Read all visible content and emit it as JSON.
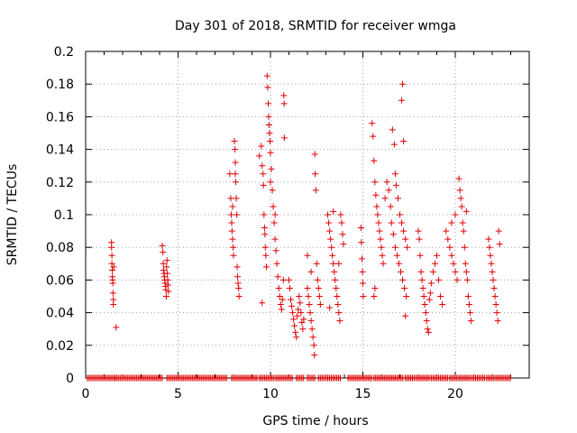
{
  "chart_data": {
    "type": "scatter",
    "title": "Day 301 of 2018, SRMTID for receiver wmga",
    "xlabel": "GPS time / hours",
    "ylabel": "SRMTID / TECUs",
    "xlim": [
      0,
      24
    ],
    "ylim": [
      0,
      0.2
    ],
    "xticks": [
      0,
      5,
      10,
      15,
      20
    ],
    "xtick_labels": [
      "0",
      "5",
      "10",
      "15",
      "20"
    ],
    "yticks": [
      0,
      0.02,
      0.04,
      0.06,
      0.08,
      0.1,
      0.12,
      0.14,
      0.16,
      0.18,
      0.2
    ],
    "ytick_labels": [
      "0",
      "0.02",
      "0.04",
      "0.06",
      "0.08",
      "0.1",
      "0.12",
      "0.14",
      "0.16",
      "0.18",
      "0.2"
    ],
    "grid": true,
    "marker": "+",
    "marker_color": "#e00000",
    "series": [
      {
        "name": "SRMTID",
        "points": [
          [
            1.4,
            0.083
          ],
          [
            1.4,
            0.08
          ],
          [
            1.42,
            0.075
          ],
          [
            1.42,
            0.07
          ],
          [
            1.44,
            0.066
          ],
          [
            1.45,
            0.062
          ],
          [
            1.46,
            0.06
          ],
          [
            1.47,
            0.058
          ],
          [
            1.48,
            0.052
          ],
          [
            1.5,
            0.048
          ],
          [
            1.5,
            0.045
          ],
          [
            1.52,
            0.068
          ],
          [
            1.65,
            0.031
          ],
          [
            4.15,
            0.081
          ],
          [
            4.18,
            0.077
          ],
          [
            4.2,
            0.07
          ],
          [
            4.22,
            0.066
          ],
          [
            4.24,
            0.064
          ],
          [
            4.26,
            0.062
          ],
          [
            4.28,
            0.06
          ],
          [
            4.3,
            0.058
          ],
          [
            4.32,
            0.056
          ],
          [
            4.34,
            0.054
          ],
          [
            4.36,
            0.05
          ],
          [
            4.38,
            0.068
          ],
          [
            4.4,
            0.072
          ],
          [
            4.42,
            0.064
          ],
          [
            4.44,
            0.06
          ],
          [
            4.46,
            0.057
          ],
          [
            4.48,
            0.053
          ],
          [
            7.8,
            0.125
          ],
          [
            7.85,
            0.11
          ],
          [
            7.88,
            0.1
          ],
          [
            7.9,
            0.095
          ],
          [
            7.92,
            0.09
          ],
          [
            7.95,
            0.085
          ],
          [
            7.98,
            0.08
          ],
          [
            8.0,
            0.075
          ],
          [
            8.05,
            0.145
          ],
          [
            8.08,
            0.14
          ],
          [
            8.1,
            0.132
          ],
          [
            8.12,
            0.12
          ],
          [
            8.15,
            0.11
          ],
          [
            8.18,
            0.1
          ],
          [
            8.2,
            0.068
          ],
          [
            8.22,
            0.062
          ],
          [
            8.25,
            0.058
          ],
          [
            8.28,
            0.055
          ],
          [
            8.3,
            0.05
          ],
          [
            8.1,
            0.125
          ],
          [
            7.95,
            0.105
          ],
          [
            9.4,
            0.136
          ],
          [
            9.5,
            0.142
          ],
          [
            9.55,
            0.13
          ],
          [
            9.6,
            0.125
          ],
          [
            9.62,
            0.118
          ],
          [
            9.65,
            0.1
          ],
          [
            9.68,
            0.092
          ],
          [
            9.7,
            0.088
          ],
          [
            9.72,
            0.08
          ],
          [
            9.75,
            0.075
          ],
          [
            9.78,
            0.068
          ],
          [
            9.55,
            0.046
          ],
          [
            9.82,
            0.185
          ],
          [
            9.85,
            0.178
          ],
          [
            9.88,
            0.168
          ],
          [
            9.9,
            0.16
          ],
          [
            9.92,
            0.155
          ],
          [
            9.95,
            0.15
          ],
          [
            9.98,
            0.145
          ],
          [
            10.0,
            0.138
          ],
          [
            10.05,
            0.128
          ],
          [
            10.1,
            0.115
          ],
          [
            10.15,
            0.105
          ],
          [
            10.2,
            0.095
          ],
          [
            10.25,
            0.085
          ],
          [
            10.3,
            0.078
          ],
          [
            10.35,
            0.07
          ],
          [
            10.4,
            0.062
          ],
          [
            10.45,
            0.055
          ],
          [
            10.5,
            0.05
          ],
          [
            10.55,
            0.045
          ],
          [
            10.6,
            0.042
          ],
          [
            10.65,
            0.048
          ],
          [
            10.7,
            0.06
          ],
          [
            10.75,
            0.147
          ],
          [
            10.72,
            0.173
          ],
          [
            10.74,
            0.168
          ],
          [
            10.0,
            0.12
          ],
          [
            10.25,
            0.1
          ],
          [
            11.0,
            0.06
          ],
          [
            11.05,
            0.055
          ],
          [
            11.1,
            0.048
          ],
          [
            11.15,
            0.044
          ],
          [
            11.2,
            0.04
          ],
          [
            11.25,
            0.036
          ],
          [
            11.3,
            0.032
          ],
          [
            11.35,
            0.028
          ],
          [
            11.4,
            0.025
          ],
          [
            11.45,
            0.038
          ],
          [
            11.5,
            0.042
          ],
          [
            11.55,
            0.05
          ],
          [
            11.6,
            0.046
          ],
          [
            11.65,
            0.04
          ],
          [
            11.7,
            0.034
          ],
          [
            11.75,
            0.03
          ],
          [
            11.8,
            0.036
          ],
          [
            12.0,
            0.055
          ],
          [
            12.05,
            0.05
          ],
          [
            12.1,
            0.045
          ],
          [
            12.15,
            0.04
          ],
          [
            12.2,
            0.035
          ],
          [
            12.25,
            0.03
          ],
          [
            12.3,
            0.025
          ],
          [
            12.35,
            0.02
          ],
          [
            12.38,
            0.014
          ],
          [
            12.4,
            0.137
          ],
          [
            12.42,
            0.125
          ],
          [
            12.45,
            0.115
          ],
          [
            12.5,
            0.07
          ],
          [
            12.55,
            0.06
          ],
          [
            12.6,
            0.055
          ],
          [
            12.65,
            0.05
          ],
          [
            12.7,
            0.045
          ],
          [
            12.2,
            0.065
          ],
          [
            12.0,
            0.075
          ],
          [
            13.1,
            0.1
          ],
          [
            13.15,
            0.095
          ],
          [
            13.2,
            0.09
          ],
          [
            13.25,
            0.085
          ],
          [
            13.3,
            0.08
          ],
          [
            13.35,
            0.075
          ],
          [
            13.4,
            0.07
          ],
          [
            13.45,
            0.065
          ],
          [
            13.5,
            0.06
          ],
          [
            13.55,
            0.055
          ],
          [
            13.6,
            0.05
          ],
          [
            13.65,
            0.045
          ],
          [
            13.7,
            0.04
          ],
          [
            13.75,
            0.035
          ],
          [
            13.8,
            0.1
          ],
          [
            13.85,
            0.095
          ],
          [
            13.9,
            0.088
          ],
          [
            13.95,
            0.082
          ],
          [
            13.4,
            0.102
          ],
          [
            13.7,
            0.07
          ],
          [
            13.2,
            0.043
          ],
          [
            14.9,
            0.092
          ],
          [
            14.92,
            0.083
          ],
          [
            14.95,
            0.073
          ],
          [
            14.98,
            0.065
          ],
          [
            15.0,
            0.058
          ],
          [
            15.02,
            0.05
          ],
          [
            15.5,
            0.156
          ],
          [
            15.55,
            0.148
          ],
          [
            15.6,
            0.133
          ],
          [
            15.65,
            0.12
          ],
          [
            15.7,
            0.112
          ],
          [
            15.75,
            0.105
          ],
          [
            15.8,
            0.1
          ],
          [
            15.85,
            0.095
          ],
          [
            15.9,
            0.09
          ],
          [
            15.95,
            0.085
          ],
          [
            16.0,
            0.08
          ],
          [
            16.05,
            0.075
          ],
          [
            16.1,
            0.07
          ],
          [
            15.6,
            0.05
          ],
          [
            15.65,
            0.055
          ],
          [
            16.2,
            0.11
          ],
          [
            16.3,
            0.12
          ],
          [
            16.4,
            0.115
          ],
          [
            16.5,
            0.105
          ],
          [
            16.6,
            0.152
          ],
          [
            16.7,
            0.143
          ],
          [
            16.75,
            0.125
          ],
          [
            16.8,
            0.118
          ],
          [
            16.9,
            0.11
          ],
          [
            17.0,
            0.1
          ],
          [
            17.1,
            0.095
          ],
          [
            17.2,
            0.09
          ],
          [
            17.3,
            0.085
          ],
          [
            17.4,
            0.08
          ],
          [
            16.55,
            0.095
          ],
          [
            16.65,
            0.088
          ],
          [
            16.75,
            0.08
          ],
          [
            16.85,
            0.075
          ],
          [
            16.95,
            0.07
          ],
          [
            17.05,
            0.065
          ],
          [
            17.15,
            0.06
          ],
          [
            17.25,
            0.055
          ],
          [
            17.35,
            0.05
          ],
          [
            17.1,
            0.17
          ],
          [
            17.15,
            0.18
          ],
          [
            17.2,
            0.145
          ],
          [
            17.3,
            0.038
          ],
          [
            18.0,
            0.09
          ],
          [
            18.05,
            0.085
          ],
          [
            18.1,
            0.075
          ],
          [
            18.15,
            0.065
          ],
          [
            18.2,
            0.06
          ],
          [
            18.25,
            0.055
          ],
          [
            18.3,
            0.05
          ],
          [
            18.35,
            0.045
          ],
          [
            18.4,
            0.04
          ],
          [
            18.45,
            0.035
          ],
          [
            18.5,
            0.03
          ],
          [
            18.55,
            0.028
          ],
          [
            18.6,
            0.048
          ],
          [
            18.65,
            0.052
          ],
          [
            18.7,
            0.058
          ],
          [
            18.8,
            0.065
          ],
          [
            18.9,
            0.07
          ],
          [
            19.0,
            0.075
          ],
          [
            19.1,
            0.06
          ],
          [
            19.2,
            0.05
          ],
          [
            19.3,
            0.045
          ],
          [
            19.5,
            0.09
          ],
          [
            19.6,
            0.085
          ],
          [
            19.7,
            0.08
          ],
          [
            19.8,
            0.075
          ],
          [
            19.9,
            0.07
          ],
          [
            20.0,
            0.065
          ],
          [
            20.1,
            0.06
          ],
          [
            20.2,
            0.122
          ],
          [
            20.25,
            0.115
          ],
          [
            20.3,
            0.11
          ],
          [
            20.35,
            0.105
          ],
          [
            20.4,
            0.095
          ],
          [
            20.45,
            0.09
          ],
          [
            20.5,
            0.08
          ],
          [
            20.55,
            0.07
          ],
          [
            20.6,
            0.065
          ],
          [
            20.65,
            0.06
          ],
          [
            20.7,
            0.05
          ],
          [
            20.75,
            0.045
          ],
          [
            20.8,
            0.04
          ],
          [
            20.85,
            0.035
          ],
          [
            20.0,
            0.1
          ],
          [
            19.8,
            0.095
          ],
          [
            20.6,
            0.102
          ],
          [
            21.8,
            0.085
          ],
          [
            21.85,
            0.08
          ],
          [
            21.9,
            0.075
          ],
          [
            21.95,
            0.07
          ],
          [
            22.0,
            0.065
          ],
          [
            22.05,
            0.06
          ],
          [
            22.1,
            0.055
          ],
          [
            22.15,
            0.05
          ],
          [
            22.2,
            0.045
          ],
          [
            22.25,
            0.04
          ],
          [
            22.3,
            0.035
          ],
          [
            22.35,
            0.09
          ],
          [
            22.4,
            0.082
          ]
        ]
      },
      {
        "name": "zero baseline",
        "segments": [
          [
            0.1,
            1.6
          ],
          [
            1.6,
            4.2
          ],
          [
            4.4,
            7.7
          ],
          [
            7.9,
            9.3
          ],
          [
            9.4,
            10.2
          ],
          [
            10.3,
            11.2
          ],
          [
            11.4,
            11.8
          ],
          [
            12.0,
            12.4
          ],
          [
            12.6,
            12.9
          ],
          [
            13.0,
            13.8
          ],
          [
            14.2,
            15.5
          ],
          [
            15.6,
            17.2
          ],
          [
            17.3,
            17.8
          ],
          [
            17.9,
            18.6
          ],
          [
            18.7,
            19.6
          ],
          [
            19.7,
            20.1
          ],
          [
            20.2,
            20.8
          ],
          [
            20.9,
            21.6
          ],
          [
            21.7,
            22.1
          ],
          [
            22.2,
            23.0
          ]
        ]
      }
    ]
  }
}
